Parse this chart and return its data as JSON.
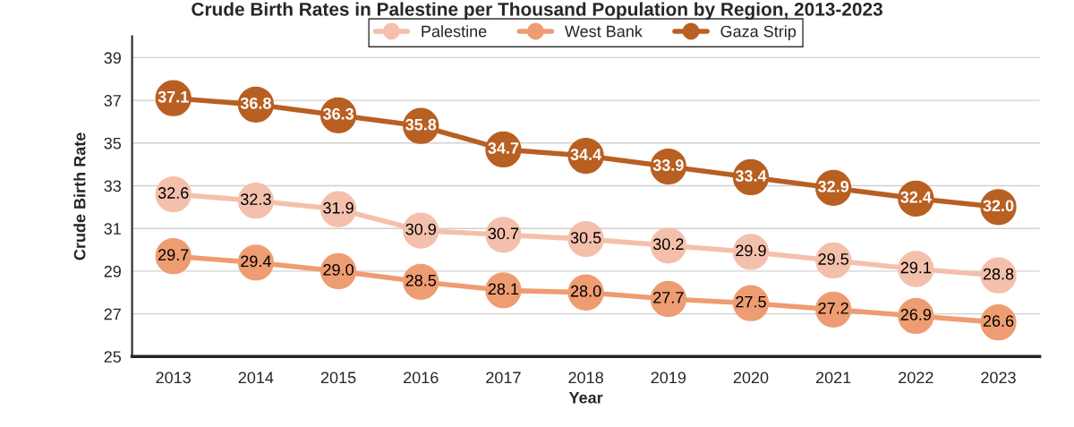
{
  "chart_data": {
    "type": "line",
    "title": "Crude Birth Rates in Palestine per Thousand Population by Region, 2013-2023",
    "xlabel": "Year",
    "ylabel": "Crude Birth Rate",
    "categories": [
      "2013",
      "2014",
      "2015",
      "2016",
      "2017",
      "2018",
      "2019",
      "2020",
      "2021",
      "2022",
      "2023"
    ],
    "series": [
      {
        "name": "Palestine",
        "color": "#f4c0ac",
        "values": [
          32.6,
          32.3,
          31.9,
          30.9,
          30.7,
          30.5,
          30.2,
          29.9,
          29.5,
          29.1,
          28.8
        ],
        "value_labels": [
          "32.6",
          "32.3",
          "31.9",
          "30.9",
          "30.7",
          "30.5",
          "30.2",
          "29.9",
          "29.5",
          "29.1",
          "28.8"
        ]
      },
      {
        "name": "West Bank",
        "color": "#ee9c72",
        "values": [
          29.7,
          29.4,
          29.0,
          28.5,
          28.1,
          28.0,
          27.7,
          27.5,
          27.2,
          26.9,
          26.6
        ],
        "value_labels": [
          "29.7",
          "29.4",
          "29.0",
          "28.5",
          "28.1",
          "28.0",
          "27.7",
          "27.5",
          "27.2",
          "26.9",
          "26.6"
        ]
      },
      {
        "name": "Gaza Strip",
        "color": "#b85f22",
        "values": [
          37.1,
          36.8,
          36.3,
          35.8,
          34.7,
          34.4,
          33.9,
          33.4,
          32.9,
          32.4,
          32.0
        ],
        "value_labels": [
          "37.1",
          "36.8",
          "36.3",
          "35.8",
          "34.7",
          "34.4",
          "33.9",
          "33.4",
          "32.9",
          "32.4",
          "32.0"
        ]
      }
    ],
    "ylim": [
      25,
      40
    ],
    "yticks": [
      25,
      27,
      29,
      31,
      33,
      35,
      37,
      39
    ],
    "grid": "y",
    "legend": "top",
    "marker": "circle",
    "line_style": "solid"
  }
}
